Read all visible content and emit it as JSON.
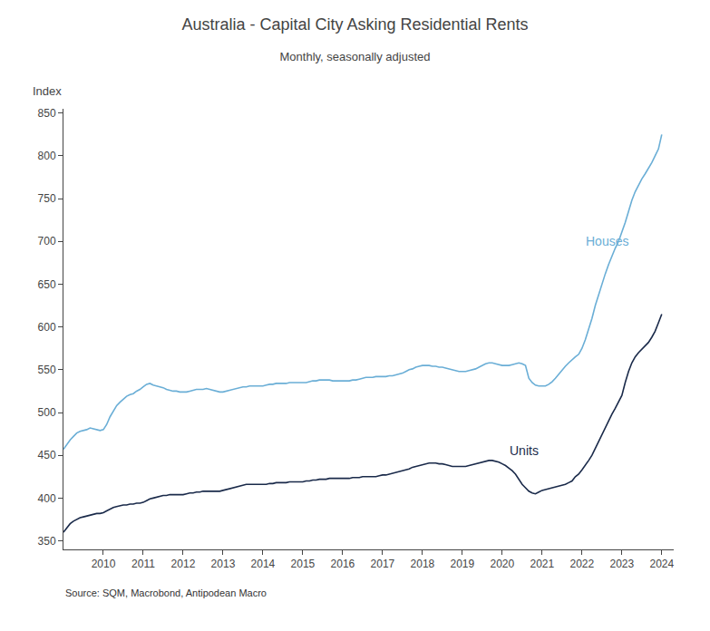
{
  "chart_data": {
    "type": "line",
    "title": "Australia - Capital City Asking Residential Rents",
    "subtitle": "Monthly, seasonally adjusted",
    "ylabel": "Index",
    "source": "Source: SQM, Macrobond, Antipodean Macro",
    "grid": false,
    "legend": false,
    "xlim": [
      2009.0,
      2024.3
    ],
    "xticks": [
      2010,
      2011,
      2012,
      2013,
      2014,
      2015,
      2016,
      2017,
      2018,
      2019,
      2020,
      2021,
      2022,
      2023,
      2024
    ],
    "ylim": [
      340,
      855
    ],
    "yticks": [
      350,
      400,
      450,
      500,
      550,
      600,
      650,
      700,
      750,
      800,
      850
    ],
    "x": [
      2009.0,
      2009.083,
      2009.167,
      2009.25,
      2009.333,
      2009.417,
      2009.5,
      2009.583,
      2009.667,
      2009.75,
      2009.833,
      2009.917,
      2010.0,
      2010.083,
      2010.167,
      2010.25,
      2010.333,
      2010.417,
      2010.5,
      2010.583,
      2010.667,
      2010.75,
      2010.833,
      2010.917,
      2011.0,
      2011.083,
      2011.167,
      2011.25,
      2011.333,
      2011.417,
      2011.5,
      2011.583,
      2011.667,
      2011.75,
      2011.833,
      2011.917,
      2012.0,
      2012.083,
      2012.167,
      2012.25,
      2012.333,
      2012.417,
      2012.5,
      2012.583,
      2012.667,
      2012.75,
      2012.833,
      2012.917,
      2013.0,
      2013.083,
      2013.167,
      2013.25,
      2013.333,
      2013.417,
      2013.5,
      2013.583,
      2013.667,
      2013.75,
      2013.833,
      2013.917,
      2014.0,
      2014.083,
      2014.167,
      2014.25,
      2014.333,
      2014.417,
      2014.5,
      2014.583,
      2014.667,
      2014.75,
      2014.833,
      2014.917,
      2015.0,
      2015.083,
      2015.167,
      2015.25,
      2015.333,
      2015.417,
      2015.5,
      2015.583,
      2015.667,
      2015.75,
      2015.833,
      2015.917,
      2016.0,
      2016.083,
      2016.167,
      2016.25,
      2016.333,
      2016.417,
      2016.5,
      2016.583,
      2016.667,
      2016.75,
      2016.833,
      2016.917,
      2017.0,
      2017.083,
      2017.167,
      2017.25,
      2017.333,
      2017.417,
      2017.5,
      2017.583,
      2017.667,
      2017.75,
      2017.833,
      2017.917,
      2018.0,
      2018.083,
      2018.167,
      2018.25,
      2018.333,
      2018.417,
      2018.5,
      2018.583,
      2018.667,
      2018.75,
      2018.833,
      2018.917,
      2019.0,
      2019.083,
      2019.167,
      2019.25,
      2019.333,
      2019.417,
      2019.5,
      2019.583,
      2019.667,
      2019.75,
      2019.833,
      2019.917,
      2020.0,
      2020.083,
      2020.167,
      2020.25,
      2020.333,
      2020.417,
      2020.5,
      2020.583,
      2020.667,
      2020.75,
      2020.833,
      2020.917,
      2021.0,
      2021.083,
      2021.167,
      2021.25,
      2021.333,
      2021.417,
      2021.5,
      2021.583,
      2021.667,
      2021.75,
      2021.833,
      2021.917,
      2022.0,
      2022.083,
      2022.167,
      2022.25,
      2022.333,
      2022.417,
      2022.5,
      2022.583,
      2022.667,
      2022.75,
      2022.833,
      2022.917,
      2023.0,
      2023.083,
      2023.167,
      2023.25,
      2023.333,
      2023.417,
      2023.5,
      2023.583,
      2023.667,
      2023.75,
      2023.833,
      2023.917,
      2024.0
    ],
    "series": [
      {
        "name": "Houses",
        "color": "#6aaed6",
        "label_at": [
          2022.05,
          700
        ],
        "values": [
          457,
          463,
          468,
          472,
          476,
          478,
          479,
          480,
          482,
          481,
          480,
          479,
          480,
          486,
          495,
          502,
          508,
          512,
          516,
          519,
          521,
          522,
          525,
          527,
          530,
          533,
          534,
          532,
          531,
          530,
          529,
          527,
          526,
          525,
          525,
          524,
          524,
          524,
          525,
          526,
          527,
          527,
          527,
          528,
          527,
          526,
          525,
          524,
          524,
          525,
          526,
          527,
          528,
          529,
          530,
          530,
          531,
          531,
          531,
          531,
          531,
          532,
          533,
          533,
          534,
          534,
          534,
          534,
          535,
          535,
          535,
          535,
          535,
          535,
          536,
          537,
          537,
          538,
          538,
          538,
          538,
          537,
          537,
          537,
          537,
          537,
          537,
          538,
          538,
          539,
          540,
          541,
          541,
          541,
          542,
          542,
          542,
          542,
          543,
          543,
          544,
          545,
          546,
          548,
          550,
          551,
          553,
          554,
          555,
          555,
          555,
          554,
          554,
          553,
          553,
          552,
          551,
          550,
          549,
          548,
          548,
          548,
          549,
          550,
          551,
          553,
          555,
          557,
          558,
          558,
          557,
          556,
          555,
          555,
          555,
          556,
          557,
          558,
          557,
          555,
          540,
          535,
          532,
          531,
          531,
          531,
          533,
          536,
          540,
          545,
          550,
          554,
          558,
          562,
          565,
          568,
          575,
          585,
          597,
          610,
          625,
          638,
          650,
          662,
          673,
          683,
          692,
          700,
          710,
          722,
          735,
          748,
          758,
          766,
          773,
          779,
          785,
          792,
          800,
          808,
          825
        ]
      },
      {
        "name": "Units",
        "color": "#1a2a4a",
        "label_at": [
          2020.15,
          455
        ],
        "values": [
          360,
          365,
          370,
          373,
          375,
          377,
          378,
          379,
          380,
          381,
          382,
          382,
          383,
          385,
          387,
          389,
          390,
          391,
          392,
          392,
          393,
          393,
          394,
          394,
          395,
          397,
          399,
          400,
          401,
          402,
          403,
          403,
          404,
          404,
          404,
          404,
          404,
          405,
          406,
          406,
          407,
          407,
          408,
          408,
          408,
          408,
          408,
          408,
          409,
          410,
          411,
          412,
          413,
          414,
          415,
          416,
          416,
          416,
          416,
          416,
          416,
          416,
          417,
          417,
          418,
          418,
          418,
          418,
          419,
          419,
          419,
          419,
          419,
          420,
          420,
          421,
          421,
          422,
          422,
          422,
          423,
          423,
          423,
          423,
          423,
          423,
          423,
          424,
          424,
          424,
          425,
          425,
          425,
          425,
          425,
          426,
          427,
          427,
          428,
          429,
          430,
          431,
          432,
          433,
          434,
          436,
          437,
          438,
          439,
          440,
          441,
          441,
          441,
          440,
          440,
          439,
          438,
          437,
          437,
          437,
          437,
          437,
          438,
          439,
          440,
          441,
          442,
          443,
          444,
          444,
          443,
          442,
          440,
          438,
          435,
          432,
          428,
          422,
          416,
          412,
          408,
          406,
          405,
          407,
          409,
          410,
          411,
          412,
          413,
          414,
          415,
          416,
          418,
          420,
          425,
          428,
          433,
          438,
          444,
          450,
          458,
          467,
          475,
          482,
          490,
          498,
          505,
          512,
          520,
          535,
          548,
          558,
          565,
          570,
          574,
          578,
          582,
          588,
          595,
          605,
          615
        ]
      }
    ]
  }
}
